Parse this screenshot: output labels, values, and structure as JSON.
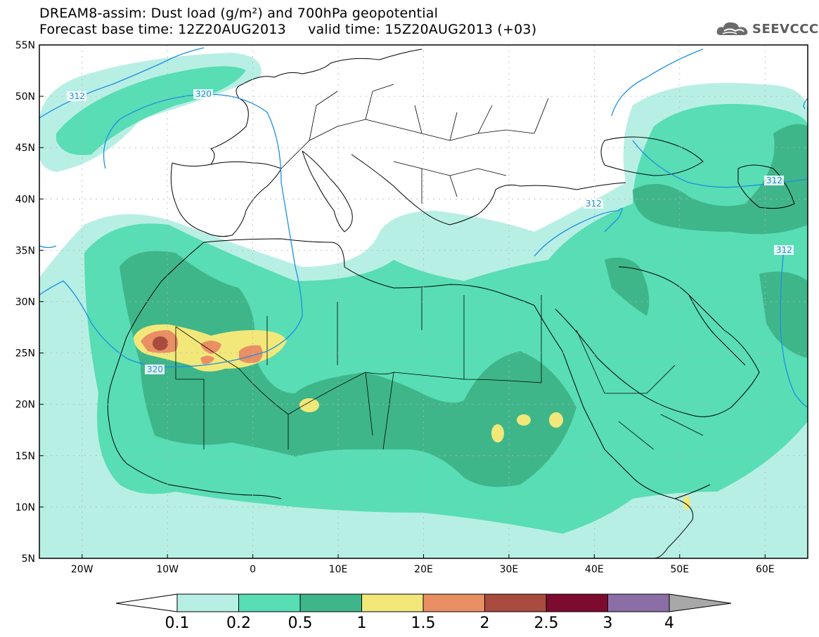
{
  "title": {
    "line1": "DREAM8-assim: Dust load (g/m²) and 700hPa geopotential",
    "line2": "Forecast base time: 12Z20AUG2013     valid time: 15Z20AUG2013 (+03)"
  },
  "logo": {
    "text": "SEEVCCC",
    "icon": "cloud-icon"
  },
  "map": {
    "lat_range": [
      5,
      55
    ],
    "lon_range": [
      -25,
      65
    ],
    "lat_ticks": [
      "55N",
      "50N",
      "45N",
      "40N",
      "35N",
      "30N",
      "25N",
      "20N",
      "15N",
      "10N",
      "5N"
    ],
    "lon_ticks": [
      "20W",
      "10W",
      "0",
      "10E",
      "20E",
      "30E",
      "40E",
      "50E",
      "60E"
    ],
    "contour_labels": [
      "312",
      "320",
      "312",
      "312",
      "312",
      "320"
    ]
  },
  "colorbar": {
    "labels": [
      "0.1",
      "0.2",
      "0.5",
      "1",
      "1.5",
      "2",
      "2.5",
      "3",
      "4"
    ],
    "colors": [
      "#b8efe4",
      "#58ddb5",
      "#3fb68a",
      "#f2e87a",
      "#e98f63",
      "#a94b3f",
      "#7c0b2f",
      "#8c6ea6",
      "#a8a8a8"
    ]
  },
  "colors": {
    "c1": "#b8efe4",
    "c2": "#58ddb5",
    "c3": "#3fb68a",
    "c4": "#f2e87a",
    "c5": "#e98f63",
    "c6": "#a94b3f",
    "contour": "#1d8fe0",
    "border": "#000000"
  }
}
